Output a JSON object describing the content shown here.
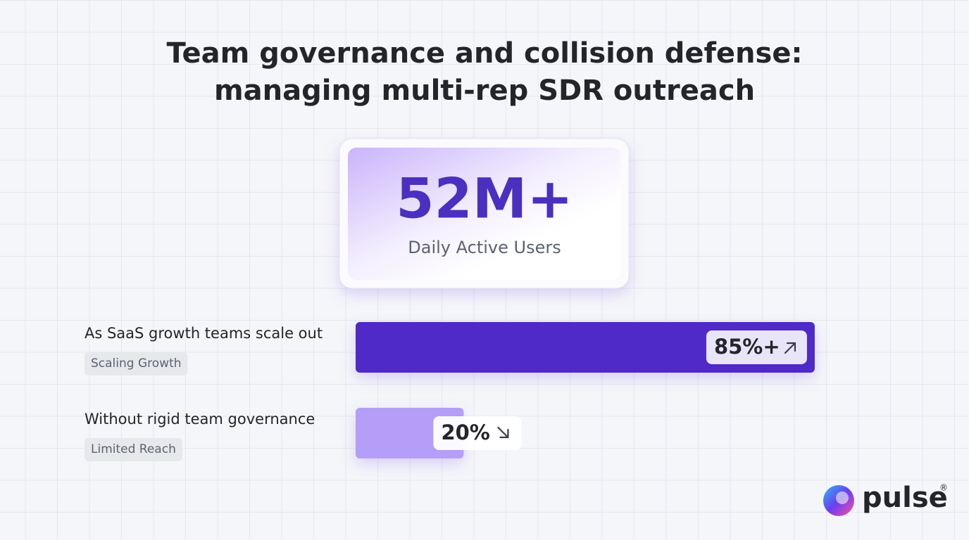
{
  "title": [
    "Team governance and collision defense:",
    "managing multi-rep SDR outreach"
  ],
  "stat": {
    "value": "52M+",
    "label": "Daily Active Users"
  },
  "bars": [
    {
      "label": "As SaaS growth teams scale out",
      "tag": "Scaling Growth",
      "value": 85,
      "value_label": "85%+",
      "trend": "up",
      "color": "#4f2cc8"
    },
    {
      "label": "Without rigid team governance",
      "tag": "Limited Reach",
      "value": 20,
      "value_label": "20%",
      "trend": "down",
      "color": "#b59ef8"
    }
  ],
  "brand": {
    "name": "pulse",
    "mark": "®"
  }
}
